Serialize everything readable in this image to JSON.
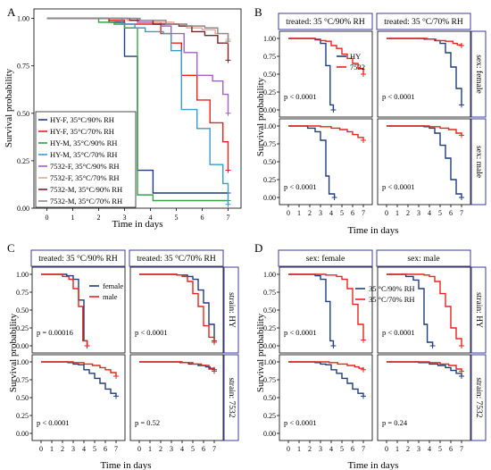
{
  "colors": {
    "hy": "#1f3d7a",
    "s7532": "#e8231b",
    "female": "#1f3d7a",
    "male": "#e8231b",
    "rh90": "#1f3d7a",
    "rh70": "#e8231b",
    "A_HY-F-90": "#1f3d7a",
    "A_HY-F-70": "#e8231b",
    "A_HY-M-90": "#3aa24a",
    "A_HY-M-70": "#3d9ad1",
    "A_7532-F-90": "#a460c2",
    "A_7532-F-70": "#f4a38c",
    "A_7532-M-90": "#7a2424",
    "A_7532-M-70": "#8a8a8a",
    "frame": "#3b3b9c"
  },
  "labels": {
    "survival": "Survival probability",
    "time": "Time in days",
    "A": "A",
    "B": "B",
    "C": "C",
    "D": "D",
    "b_f1": "treated: 35 °C/90% RH",
    "b_f2": "treated: 35 °C/70% RH",
    "b_s1": "sex: female",
    "b_s2": "sex: male",
    "c_f1": "treated: 35 °C/90% RH",
    "c_f2": "treated: 35 °C/70% RH",
    "c_s1": "strain: HY",
    "c_s2": "strain: 7532",
    "d_f1": "sex: female",
    "d_f2": "sex: male",
    "d_s1": "strain: HY",
    "d_s2": "strain: 7532",
    "b_l1": "HY",
    "b_l2": "7532",
    "c_l1": "female",
    "c_l2": "male",
    "d_l1": "35 °C/90% RH",
    "d_l2": "35 °C/70% RH",
    "a_l1": "HY-F, 35°C/90% RH",
    "a_l2": "HY-F, 35°C/70% RH",
    "a_l3": "HY-M, 35°C/90% RH",
    "a_l4": "HY-M, 35°C/70% RH",
    "a_l5": "7532-F, 35°C/90% RH",
    "a_l6": "7532-F, 35°C/70% RH",
    "a_l7": "7532-M, 35°C/90% RH",
    "a_l8": "7532-M, 35°C/70% RH",
    "p_b1": "p < 0.0001",
    "p_b2": "p < 0.0001",
    "p_b3": "p < 0.0001",
    "p_b4": "p < 0.0001",
    "p_c1": "p = 0.00016",
    "p_c2": "p < 0.0001",
    "p_c3": "p < 0.0001",
    "p_c4": "p = 0.52",
    "p_d1": "p < 0.0001",
    "p_d2": "p < 0.0001",
    "p_d3": "p < 0.0001",
    "p_d4": "p = 0.24"
  },
  "chart_data": [
    {
      "panel": "A",
      "type": "line",
      "step": true,
      "xlabel": "Time in days",
      "ylabel": "Survival probability",
      "xlim": [
        -0.5,
        7.5
      ],
      "xticks": [
        0,
        1,
        2,
        3,
        4,
        5,
        6,
        7
      ],
      "ylim": [
        0,
        1.05
      ],
      "yticks": [
        "0.00",
        "0.25",
        "0.50",
        "0.75",
        "1.00"
      ],
      "legend": "bottom-left",
      "series": [
        {
          "name": "HY-F, 35°C/90% RH",
          "x": [
            0,
            2.4,
            3,
            3.5,
            4.1,
            7
          ],
          "y": [
            1,
            0.98,
            0.8,
            0.2,
            0.08,
            0.08
          ]
        },
        {
          "name": "HY-F, 35°C/70% RH",
          "x": [
            0,
            2.4,
            3,
            4.4,
            4.8,
            5.2,
            5.8,
            6.3,
            6.8,
            7
          ],
          "y": [
            1,
            0.99,
            0.97,
            0.92,
            0.87,
            0.7,
            0.57,
            0.45,
            0.35,
            0.2
          ]
        },
        {
          "name": "HY-M, 35°C/90% RH",
          "x": [
            0,
            2,
            2.6,
            3,
            3.5,
            4.1,
            7
          ],
          "y": [
            1,
            0.98,
            0.97,
            0.95,
            0.07,
            0.04,
            0.04
          ]
        },
        {
          "name": "HY-M, 35°C/70% RH",
          "x": [
            0,
            2.9,
            3.4,
            3.8,
            4.5,
            4.8,
            5.2,
            5.8,
            6.3,
            6.8,
            7
          ],
          "y": [
            1,
            0.97,
            0.95,
            0.93,
            0.92,
            0.83,
            0.52,
            0.42,
            0.23,
            0.13,
            0.02
          ]
        },
        {
          "name": "7532-F, 35°C/90% RH",
          "x": [
            0,
            3.5,
            4.4,
            4.8,
            5.3,
            5.8,
            6.4,
            6.8,
            7
          ],
          "y": [
            1,
            0.98,
            0.96,
            0.92,
            0.82,
            0.7,
            0.67,
            0.6,
            0.5
          ]
        },
        {
          "name": "7532-F, 35°C/70% RH",
          "x": [
            0,
            3.1,
            4.1,
            4.9,
            5.4,
            6,
            6.5,
            7
          ],
          "y": [
            1,
            0.99,
            0.98,
            0.97,
            0.95,
            0.94,
            0.92,
            0.89
          ]
        },
        {
          "name": "7532-M, 35°C/90% RH",
          "x": [
            0,
            3.2,
            4.1,
            5.1,
            5.6,
            6.1,
            6.6,
            7
          ],
          "y": [
            1,
            0.99,
            0.97,
            0.96,
            0.93,
            0.91,
            0.87,
            0.78
          ]
        },
        {
          "name": "7532-M, 35°C/70% RH",
          "x": [
            0,
            3.6,
            4.6,
            5.4,
            6.1,
            6.6,
            7
          ],
          "y": [
            1,
            0.99,
            0.97,
            0.96,
            0.95,
            0.92,
            0.88
          ]
        }
      ]
    },
    {
      "panel": "B",
      "type": "line",
      "step": true,
      "xlabel": "Time in days",
      "ylabel": "Survival probability",
      "columns": [
        "treated: 35 °C/90% RH",
        "treated: 35 °C/70% RH"
      ],
      "rows": [
        "sex: female",
        "sex: male"
      ],
      "xlim": [
        -0.5,
        7.5
      ],
      "xticks": [
        0,
        1,
        2,
        3,
        4,
        5,
        6,
        7
      ],
      "ylim": [
        -0.05,
        1.05
      ],
      "yticks": [
        "0.00",
        "0.25",
        "0.50",
        "0.75",
        "1.00"
      ],
      "legend": "inside top-right",
      "facets": [
        {
          "row": 0,
          "col": 0,
          "p": "p < 0.0001",
          "series": [
            {
              "name": "HY",
              "x": [
                0,
                2.5,
                3,
                3.5,
                3.9,
                4.2
              ],
              "y": [
                1,
                0.98,
                0.93,
                0.62,
                0.07,
                0
              ]
            },
            {
              "name": "7532",
              "x": [
                0,
                2.5,
                3,
                3.5,
                4,
                4.5,
                5,
                5.5,
                6,
                6.5,
                7
              ],
              "y": [
                1,
                0.99,
                0.97,
                0.96,
                0.9,
                0.86,
                0.78,
                0.72,
                0.65,
                0.58,
                0.5
              ]
            }
          ]
        },
        {
          "row": 0,
          "col": 1,
          "p": "p < 0.0001",
          "series": [
            {
              "name": "HY",
              "x": [
                0,
                3.5,
                4.5,
                5,
                5.5,
                6,
                6.5,
                7
              ],
              "y": [
                1,
                0.99,
                0.97,
                0.93,
                0.8,
                0.6,
                0.3,
                0.07
              ]
            },
            {
              "name": "7532",
              "x": [
                0,
                3.8,
                4.6,
                5.5,
                6.2,
                6.6,
                7
              ],
              "y": [
                1,
                0.99,
                0.97,
                0.96,
                0.93,
                0.91,
                0.9
              ]
            }
          ]
        },
        {
          "row": 1,
          "col": 0,
          "p": "p < 0.0001",
          "series": [
            {
              "name": "HY",
              "x": [
                0,
                1.8,
                2.5,
                3,
                3.5,
                3.8,
                4.3
              ],
              "y": [
                1,
                0.97,
                0.92,
                0.8,
                0.3,
                0.05,
                0
              ]
            },
            {
              "name": "7532",
              "x": [
                0,
                3,
                4,
                4.8,
                5.5,
                6,
                6.5,
                7
              ],
              "y": [
                1,
                0.99,
                0.97,
                0.95,
                0.92,
                0.88,
                0.84,
                0.8
              ]
            }
          ]
        },
        {
          "row": 1,
          "col": 1,
          "p": "p < 0.0001",
          "series": [
            {
              "name": "HY",
              "x": [
                0,
                3.5,
                4,
                4.5,
                5,
                5.5,
                6,
                6.5,
                7
              ],
              "y": [
                1,
                0.99,
                0.97,
                0.9,
                0.73,
                0.55,
                0.25,
                0.05,
                0
              ]
            },
            {
              "name": "7532",
              "x": [
                0,
                4,
                5,
                5.8,
                6.5,
                7
              ],
              "y": [
                1,
                0.99,
                0.97,
                0.95,
                0.9,
                0.87
              ]
            }
          ]
        }
      ]
    },
    {
      "panel": "C",
      "type": "line",
      "step": true,
      "xlabel": "Time in days",
      "ylabel": "Survival probability",
      "columns": [
        "treated: 35 °C/90% RH",
        "treated: 35 °C/70% RH"
      ],
      "rows": [
        "strain: HY",
        "strain: 7532"
      ],
      "xlim": [
        -0.5,
        7.5
      ],
      "xticks": [
        0,
        1,
        2,
        3,
        4,
        5,
        6,
        7
      ],
      "ylim": [
        -0.05,
        1.05
      ],
      "yticks": [
        "0.00",
        "0.25",
        "0.50",
        "0.75",
        "1.00"
      ],
      "legend": "inside top-right",
      "facets": [
        {
          "row": 0,
          "col": 0,
          "p": "p = 0.00016",
          "series": [
            {
              "name": "female",
              "x": [
                0,
                2.4,
                3,
                3.5,
                4,
                4.3
              ],
              "y": [
                1,
                0.98,
                0.93,
                0.64,
                0.07,
                0
              ]
            },
            {
              "name": "male",
              "x": [
                0,
                2,
                2.6,
                3,
                3.5,
                3.9,
                4.3
              ],
              "y": [
                1,
                0.97,
                0.93,
                0.8,
                0.55,
                0.07,
                0
              ]
            }
          ]
        },
        {
          "row": 0,
          "col": 1,
          "p": "p < 0.0001",
          "series": [
            {
              "name": "female",
              "x": [
                0,
                3.5,
                4.5,
                5,
                5.5,
                6,
                6.5,
                7
              ],
              "y": [
                1,
                0.99,
                0.97,
                0.93,
                0.78,
                0.6,
                0.3,
                0.07
              ]
            },
            {
              "name": "male",
              "x": [
                0,
                3.5,
                4,
                4.5,
                5,
                5.5,
                6,
                6.5,
                7
              ],
              "y": [
                1,
                0.99,
                0.97,
                0.9,
                0.73,
                0.55,
                0.28,
                0.12,
                0.05
              ]
            }
          ]
        },
        {
          "row": 1,
          "col": 0,
          "p": "p < 0.0001",
          "series": [
            {
              "name": "female",
              "x": [
                0,
                2.5,
                3,
                3.5,
                4,
                4.5,
                5,
                5.5,
                6,
                6.5,
                7
              ],
              "y": [
                1,
                0.99,
                0.97,
                0.96,
                0.89,
                0.84,
                0.77,
                0.7,
                0.62,
                0.56,
                0.52
              ]
            },
            {
              "name": "male",
              "x": [
                0,
                3,
                4,
                4.8,
                5.5,
                6,
                6.5,
                7
              ],
              "y": [
                1,
                0.99,
                0.97,
                0.95,
                0.92,
                0.89,
                0.85,
                0.8
              ]
            }
          ]
        },
        {
          "row": 1,
          "col": 1,
          "p": "p = 0.52",
          "series": [
            {
              "name": "female",
              "x": [
                0,
                3.8,
                4.6,
                5.5,
                6.2,
                6.6,
                7
              ],
              "y": [
                1,
                0.99,
                0.97,
                0.95,
                0.93,
                0.91,
                0.89
              ]
            },
            {
              "name": "male",
              "x": [
                0,
                4,
                5,
                5.8,
                6.5,
                7
              ],
              "y": [
                1,
                0.99,
                0.97,
                0.95,
                0.9,
                0.87
              ]
            }
          ]
        }
      ]
    },
    {
      "panel": "D",
      "type": "line",
      "step": true,
      "xlabel": "Time in days",
      "ylabel": "Survival probability",
      "columns": [
        "sex: female",
        "sex: male"
      ],
      "rows": [
        "strain: HY",
        "strain: 7532"
      ],
      "xlim": [
        -0.5,
        7.5
      ],
      "xticks": [
        0,
        1,
        2,
        3,
        4,
        5,
        6,
        7
      ],
      "ylim": [
        -0.05,
        1.05
      ],
      "yticks": [
        "0.00",
        "0.25",
        "0.50",
        "0.75",
        "1.00"
      ],
      "legend": "inside top-right",
      "facets": [
        {
          "row": 0,
          "col": 0,
          "p": "p < 0.0001",
          "series": [
            {
              "name": "35 °C/90% RH",
              "x": [
                0,
                2.5,
                3,
                3.5,
                3.9,
                4.2
              ],
              "y": [
                1,
                0.98,
                0.93,
                0.62,
                0.07,
                0
              ]
            },
            {
              "name": "35 °C/70% RH",
              "x": [
                0,
                3.5,
                4.5,
                5,
                5.5,
                6,
                6.5,
                7
              ],
              "y": [
                1,
                0.99,
                0.97,
                0.93,
                0.8,
                0.58,
                0.3,
                0.08
              ]
            }
          ]
        },
        {
          "row": 0,
          "col": 1,
          "p": "p < 0.0001",
          "series": [
            {
              "name": "35 °C/90% RH",
              "x": [
                0,
                1.8,
                2.5,
                3,
                3.5,
                3.8,
                4.3
              ],
              "y": [
                1,
                0.97,
                0.92,
                0.8,
                0.3,
                0.05,
                0
              ]
            },
            {
              "name": "35 °C/70% RH",
              "x": [
                0,
                3.5,
                4,
                4.5,
                5,
                5.5,
                6,
                6.5,
                7
              ],
              "y": [
                1,
                0.99,
                0.97,
                0.9,
                0.73,
                0.55,
                0.25,
                0.1,
                0
              ]
            }
          ]
        },
        {
          "row": 1,
          "col": 0,
          "p": "p < 0.0001",
          "series": [
            {
              "name": "35 °C/90% RH",
              "x": [
                0,
                2.5,
                3,
                3.5,
                4,
                4.5,
                5,
                5.5,
                6,
                6.5,
                7
              ],
              "y": [
                1,
                0.99,
                0.97,
                0.96,
                0.89,
                0.84,
                0.77,
                0.7,
                0.62,
                0.56,
                0.52
              ]
            },
            {
              "name": "35 °C/70% RH",
              "x": [
                0,
                3.8,
                4.6,
                5.5,
                6.2,
                6.6,
                7
              ],
              "y": [
                1,
                0.99,
                0.97,
                0.95,
                0.93,
                0.91,
                0.89
              ]
            }
          ]
        },
        {
          "row": 1,
          "col": 1,
          "p": "p = 0.24",
          "series": [
            {
              "name": "35 °C/90% RH",
              "x": [
                0,
                3,
                4,
                4.8,
                5.5,
                6,
                6.5,
                7
              ],
              "y": [
                1,
                0.99,
                0.97,
                0.95,
                0.92,
                0.88,
                0.84,
                0.8
              ]
            },
            {
              "name": "35 °C/70% RH",
              "x": [
                0,
                4,
                5,
                5.8,
                6.5,
                7
              ],
              "y": [
                1,
                0.99,
                0.97,
                0.95,
                0.9,
                0.87
              ]
            }
          ]
        }
      ]
    }
  ]
}
